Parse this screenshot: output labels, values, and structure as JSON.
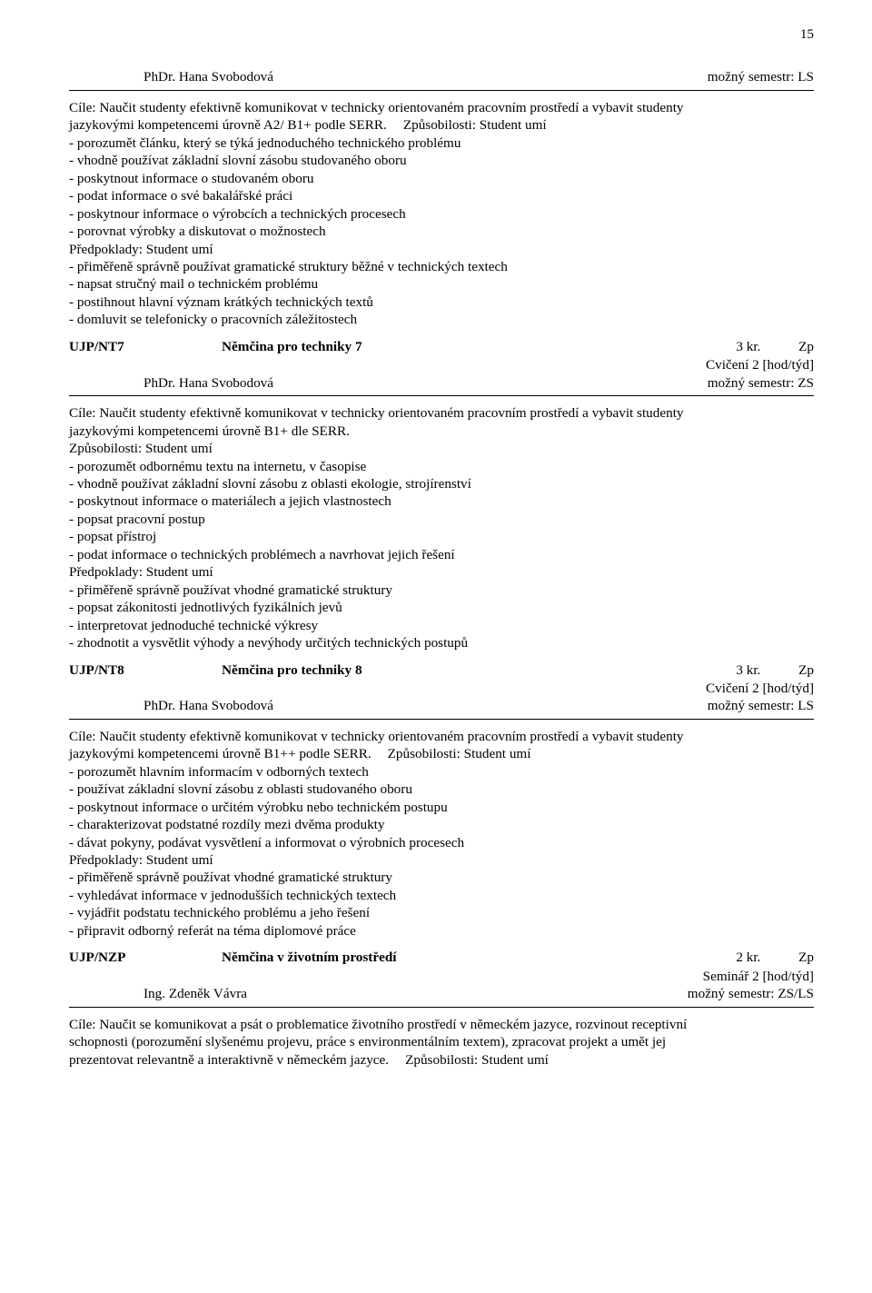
{
  "page_number": "15",
  "section1": {
    "instructor": "PhDr. Hana Svobodová",
    "semester": "možný semestr:  LS",
    "cile_line1": "Cíle: Naučit studenty efektivně komunikovat v technicky orientovaném pracovním prostředí a vybavit studenty",
    "cile_line2_left": "jazykovými kompetencemi úrovně A2/ B1+ podle SERR.",
    "cile_line2_right": "Způsobilosti: Student umí",
    "bullets": [
      "- porozumět článku, který se týká jednoduchého technického problému",
      "- vhodně používat základní slovní zásobu studovaného oboru",
      "- poskytnout informace o studovaném oboru",
      "- podat informace o své bakalářské práci",
      "- poskytnour informace o výrobcích a technických procesech",
      "- porovnat výrobky a diskutovat o možnostech"
    ],
    "predpoklady_header": "Předpoklady: Student umí",
    "predpoklady_bullets": [
      "- přiměřeně správně používat gramatické struktury běžné v technických textech",
      "- napsat stručný mail o technickém problému",
      "- postihnout hlavní význam krátkých technických textů",
      "- domluvit se telefonicky o pracovních záležitostech"
    ]
  },
  "course2": {
    "code": "UJP/NT7",
    "title": "Němčina pro techniky 7",
    "credit": "3 kr.",
    "grade": "Zp",
    "format": "Cvičení 2 [hod/týd]",
    "instructor": "PhDr. Hana Svobodová",
    "semester": "možný semestr:  ZS"
  },
  "section2": {
    "cile_line1": "Cíle: Naučit studenty efektivně komunikovat v technicky orientovaném pracovním prostředí a vybavit studenty",
    "cile_line2": "jazykovými kompetencemi úrovně B1+ dle SERR.",
    "zpusobilosti_header": "Způsobilosti: Student umí",
    "bullets": [
      "- porozumět odbornému textu na internetu, v časopise",
      "- vhodně používat základní slovní zásobu z oblasti ekologie, strojírenství",
      "- poskytnout informace o materiálech a jejich vlastnostech",
      "- popsat pracovní postup",
      "- popsat přístroj",
      "- podat informace o technických problémech a navrhovat jejich řešení"
    ],
    "predpoklady_header": "Předpoklady: Student umí",
    "predpoklady_bullets": [
      "- přiměřeně správně používat vhodné gramatické struktury",
      "- popsat zákonitosti jednotlivých fyzikálních jevů",
      "- interpretovat jednoduché technické výkresy",
      "- zhodnotit a vysvětlit výhody a nevýhody určitých technických postupů"
    ]
  },
  "course3": {
    "code": "UJP/NT8",
    "title": "Němčina pro techniky 8",
    "credit": "3 kr.",
    "grade": "Zp",
    "format": "Cvičení 2 [hod/týd]",
    "instructor": "PhDr. Hana Svobodová",
    "semester": "možný semestr:  LS"
  },
  "section3": {
    "cile_line1": "Cíle: Naučit studenty efektivně komunikovat v technicky orientovaném pracovním prostředí a vybavit studenty",
    "cile_line2_left": "jazykovými kompetencemi úrovně B1++ podle SERR.",
    "cile_line2_right": "Způsobilosti: Student umí",
    "bullets": [
      "- porozumět hlavním informacím v odborných textech",
      "- používat základní slovní zásobu z oblasti studovaného oboru",
      "- poskytnout informace o určitém výrobku nebo technickém postupu",
      "- charakterizovat podstatné rozdíly mezi dvěma produkty",
      "- dávat pokyny, podávat vysvětlení a informovat o výrobních procesech"
    ],
    "predpoklady_header": "Předpoklady: Student umí",
    "predpoklady_bullets": [
      "- přiměřeně správně používat vhodné gramatické struktury",
      "- vyhledávat informace v jednodušších technických textech",
      "- vyjádřit podstatu technického problému a jeho řešení",
      "- připravit odborný referát na téma diplomové práce"
    ]
  },
  "course4": {
    "code": "UJP/NZP",
    "title": "Němčina v životním prostředí",
    "credit": "2 kr.",
    "grade": "Zp",
    "format": "Seminář 2 [hod/týd]",
    "instructor": "Ing. Zdeněk Vávra",
    "semester": "možný semestr:  ZS/LS"
  },
  "section4": {
    "cile_line1": "Cíle: Naučit se komunikovat a psát o problematice životního prostředí v německém jazyce, rozvinout receptivní",
    "cile_line2": "schopnosti (porozumění slyšenému projevu, práce s environmentálním textem), zpracovat projekt a umět jej",
    "cile_line3_left": "prezentovat relevantně a interaktivně v německém jazyce.",
    "cile_line3_right": "Způsobilosti: Student umí"
  }
}
